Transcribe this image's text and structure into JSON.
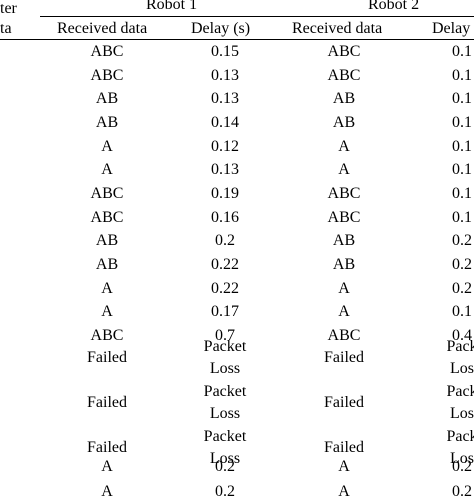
{
  "header": {
    "left_partial_top": "ter",
    "left_partial_bottom": "ta",
    "robot1": "Robot 1",
    "robot2": "Robot 2",
    "received_data": "Received data",
    "delay_r1": "Delay (s)",
    "received_data_r2": "Received data",
    "delay_r2": "Delay"
  },
  "rows": [
    {
      "r1_data": "ABC",
      "r1_delay": "0.15",
      "r2_data": "ABC",
      "r2_delay": "0.1"
    },
    {
      "r1_data": "ABC",
      "r1_delay": "0.13",
      "r2_data": "ABC",
      "r2_delay": "0.1"
    },
    {
      "r1_data": "AB",
      "r1_delay": "0.13",
      "r2_data": "AB",
      "r2_delay": "0.1"
    },
    {
      "r1_data": "AB",
      "r1_delay": "0.14",
      "r2_data": "AB",
      "r2_delay": "0.1"
    },
    {
      "r1_data": "A",
      "r1_delay": "0.12",
      "r2_data": "A",
      "r2_delay": "0.1"
    },
    {
      "r1_data": "A",
      "r1_delay": "0.13",
      "r2_data": "A",
      "r2_delay": "0.1"
    },
    {
      "r1_data": "ABC",
      "r1_delay": "0.19",
      "r2_data": "ABC",
      "r2_delay": "0.1"
    },
    {
      "r1_data": "ABC",
      "r1_delay": "0.16",
      "r2_data": "ABC",
      "r2_delay": "0.1"
    },
    {
      "r1_data": "AB",
      "r1_delay": "0.2",
      "r2_data": "AB",
      "r2_delay": "0.2"
    },
    {
      "r1_data": "AB",
      "r1_delay": "0.22",
      "r2_data": "AB",
      "r2_delay": "0.2"
    },
    {
      "r1_data": "A",
      "r1_delay": "0.22",
      "r2_data": "A",
      "r2_delay": "0.2"
    },
    {
      "r1_data": "A",
      "r1_delay": "0.17",
      "r2_data": "A",
      "r2_delay": "0.1"
    },
    {
      "r1_data": "ABC",
      "r1_delay": "0.7",
      "r2_data": "ABC",
      "r2_delay": "0.4"
    },
    {
      "r1_data": "Failed",
      "r1_delay_1": "Packet",
      "r1_delay_2": "Loss",
      "r2_data": "Failed",
      "r2_delay_1": "Pack",
      "r2_delay_2": "Los"
    },
    {
      "r1_data": "Failed",
      "r1_delay_1": "Packet",
      "r1_delay_2": "Loss",
      "r2_data": "Failed",
      "r2_delay_1": "Pack",
      "r2_delay_2": "Los"
    },
    {
      "r1_data": "Failed",
      "r1_delay_1": "Packet",
      "r1_delay_2": "Loss",
      "r2_data": "Failed",
      "r2_delay_1": "Pack",
      "r2_delay_2": "Los"
    },
    {
      "r1_data": "A",
      "r1_delay": "0.2",
      "r2_data": "A",
      "r2_delay": "0.2"
    },
    {
      "r1_data": "A",
      "r1_delay": "0.2",
      "r2_data": "A",
      "r2_delay": "0.2"
    }
  ]
}
